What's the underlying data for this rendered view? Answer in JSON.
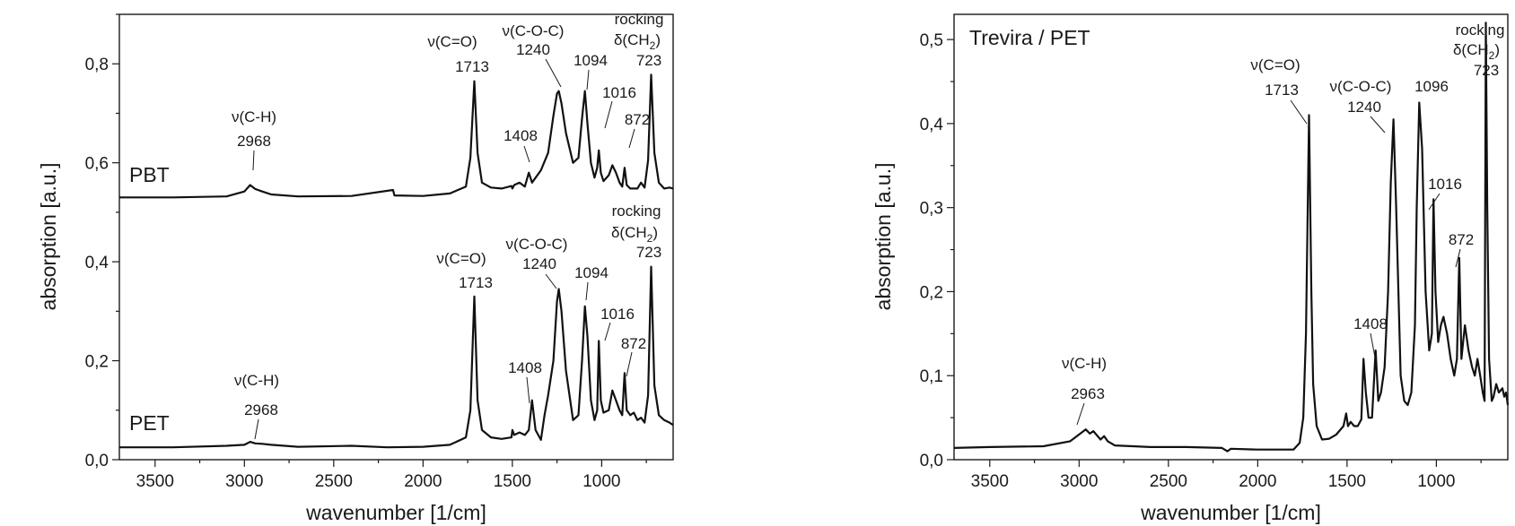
{
  "chart_data": [
    {
      "type": "line",
      "xlabel": "wavenumber [1/cm]",
      "ylabel": "absorption [a.u.]",
      "xlim": [
        3700,
        600
      ],
      "ylim": [
        0.0,
        0.9
      ],
      "x_reversed": true,
      "xticks": [
        3500,
        3000,
        2500,
        2000,
        1500,
        1000
      ],
      "xtick_labels": [
        "3500",
        "3000",
        "2500",
        "2000",
        "1500",
        "1000"
      ],
      "yticks": [
        0.0,
        0.2,
        0.4,
        0.6,
        0.8
      ],
      "ytick_labels": [
        "0,0",
        "0,2",
        "0,4",
        "0,6",
        "0,8"
      ],
      "series": [
        {
          "name": "PBT",
          "x": [
            3700,
            3400,
            3100,
            3000,
            2968,
            2940,
            2900,
            2850,
            2700,
            2400,
            2168,
            2160,
            2000,
            1850,
            1760,
            1735,
            1713,
            1695,
            1670,
            1620,
            1560,
            1505,
            1500,
            1490,
            1460,
            1430,
            1408,
            1390,
            1340,
            1300,
            1270,
            1250,
            1240,
            1225,
            1200,
            1160,
            1130,
            1110,
            1094,
            1080,
            1060,
            1040,
            1025,
            1016,
            1005,
            990,
            960,
            940,
            920,
            900,
            885,
            872,
            860,
            840,
            800,
            780,
            760,
            740,
            723,
            705,
            680,
            650,
            620,
            600
          ],
          "y": [
            0.53,
            0.53,
            0.532,
            0.542,
            0.555,
            0.547,
            0.542,
            0.536,
            0.532,
            0.533,
            0.545,
            0.534,
            0.533,
            0.538,
            0.552,
            0.61,
            0.765,
            0.62,
            0.56,
            0.55,
            0.548,
            0.553,
            0.548,
            0.555,
            0.56,
            0.552,
            0.58,
            0.56,
            0.585,
            0.62,
            0.695,
            0.74,
            0.745,
            0.72,
            0.66,
            0.6,
            0.61,
            0.69,
            0.745,
            0.68,
            0.6,
            0.57,
            0.59,
            0.625,
            0.58,
            0.563,
            0.575,
            0.595,
            0.58,
            0.56,
            0.552,
            0.59,
            0.555,
            0.548,
            0.548,
            0.56,
            0.55,
            0.605,
            0.778,
            0.62,
            0.56,
            0.548,
            0.55,
            0.548
          ]
        },
        {
          "name": "PET",
          "x": [
            3700,
            3400,
            3100,
            3000,
            2968,
            2940,
            2900,
            2850,
            2700,
            2400,
            2200,
            2000,
            1850,
            1760,
            1735,
            1713,
            1695,
            1670,
            1620,
            1560,
            1505,
            1500,
            1490,
            1460,
            1430,
            1408,
            1390,
            1370,
            1340,
            1320,
            1300,
            1270,
            1250,
            1240,
            1225,
            1200,
            1160,
            1130,
            1110,
            1094,
            1080,
            1060,
            1040,
            1025,
            1016,
            1005,
            990,
            960,
            940,
            920,
            900,
            885,
            872,
            860,
            840,
            820,
            800,
            780,
            760,
            740,
            723,
            705,
            680,
            650,
            620,
            600
          ],
          "y": [
            0.025,
            0.025,
            0.028,
            0.03,
            0.036,
            0.033,
            0.032,
            0.03,
            0.026,
            0.028,
            0.025,
            0.026,
            0.03,
            0.045,
            0.1,
            0.33,
            0.12,
            0.06,
            0.045,
            0.042,
            0.045,
            0.06,
            0.05,
            0.055,
            0.05,
            0.06,
            0.12,
            0.06,
            0.04,
            0.09,
            0.13,
            0.2,
            0.32,
            0.345,
            0.3,
            0.18,
            0.08,
            0.09,
            0.2,
            0.31,
            0.25,
            0.12,
            0.08,
            0.1,
            0.24,
            0.12,
            0.095,
            0.1,
            0.14,
            0.12,
            0.1,
            0.09,
            0.175,
            0.1,
            0.09,
            0.095,
            0.08,
            0.085,
            0.075,
            0.13,
            0.39,
            0.15,
            0.09,
            0.08,
            0.075,
            0.07
          ]
        }
      ],
      "panel_labels": [
        "PBT",
        "PET"
      ],
      "annotations": {
        "pbt": {
          "ch_name": "ν(C-H)",
          "ch_val": "2968",
          "co_name": "ν(C=O)",
          "co_val": "1713",
          "coc_name": "ν(C-O-C)",
          "coc_val": "1240",
          "p1094": "1094",
          "p1016": "1016",
          "p1408": "1408",
          "p872": "872",
          "rock1": "rocking",
          "rock2a": "δ(CH",
          "rock2sub": "2",
          "rock2b": ")",
          "p723": "723"
        },
        "pet": {
          "ch_name": "ν(C-H)",
          "ch_val": "2968",
          "co_name": "ν(C=O)",
          "co_val": "1713",
          "coc_name": "ν(C-O-C)",
          "coc_val": "1240",
          "p1094": "1094",
          "p1016": "1016",
          "p1408": "1408",
          "p872": "872",
          "rock1": "rocking",
          "rock2a": "δ(CH",
          "rock2sub": "2",
          "rock2b": ")",
          "p723": "723"
        }
      }
    },
    {
      "type": "line",
      "xlabel": "wavenumber [1/cm]",
      "ylabel": "absorption [a.u.]",
      "xlim": [
        3700,
        600
      ],
      "ylim": [
        0.0,
        0.53
      ],
      "x_reversed": true,
      "xticks": [
        3500,
        3000,
        2500,
        2000,
        1500,
        1000
      ],
      "xtick_labels": [
        "3500",
        "3000",
        "2500",
        "2000",
        "1500",
        "1000"
      ],
      "yticks": [
        0.0,
        0.1,
        0.2,
        0.3,
        0.4,
        0.5
      ],
      "ytick_labels": [
        "0,0",
        "0,1",
        "0,2",
        "0,3",
        "0,4",
        "0,5"
      ],
      "title": "Trevira / PET",
      "series": [
        {
          "x": [
            3700,
            3500,
            3200,
            3050,
            3000,
            2963,
            2940,
            2920,
            2900,
            2880,
            2860,
            2840,
            2800,
            2600,
            2400,
            2200,
            2170,
            2150,
            2000,
            1900,
            1800,
            1765,
            1745,
            1730,
            1713,
            1700,
            1690,
            1670,
            1640,
            1600,
            1560,
            1520,
            1505,
            1495,
            1480,
            1460,
            1440,
            1420,
            1408,
            1395,
            1380,
            1360,
            1340,
            1325,
            1310,
            1290,
            1270,
            1255,
            1240,
            1225,
            1200,
            1180,
            1160,
            1140,
            1120,
            1110,
            1096,
            1080,
            1060,
            1040,
            1025,
            1016,
            1005,
            990,
            975,
            960,
            940,
            920,
            900,
            885,
            872,
            860,
            850,
            840,
            820,
            800,
            785,
            770,
            755,
            740,
            730,
            723,
            715,
            705,
            690,
            680,
            665,
            650,
            630,
            620,
            610,
            600
          ],
          "y": [
            0.014,
            0.015,
            0.016,
            0.022,
            0.03,
            0.036,
            0.031,
            0.034,
            0.029,
            0.024,
            0.028,
            0.022,
            0.017,
            0.015,
            0.015,
            0.014,
            0.01,
            0.013,
            0.012,
            0.012,
            0.012,
            0.02,
            0.05,
            0.15,
            0.41,
            0.2,
            0.09,
            0.04,
            0.024,
            0.025,
            0.03,
            0.04,
            0.055,
            0.04,
            0.045,
            0.04,
            0.04,
            0.048,
            0.12,
            0.08,
            0.05,
            0.05,
            0.13,
            0.07,
            0.08,
            0.11,
            0.2,
            0.33,
            0.405,
            0.3,
            0.1,
            0.07,
            0.065,
            0.08,
            0.16,
            0.3,
            0.425,
            0.37,
            0.2,
            0.13,
            0.15,
            0.31,
            0.2,
            0.14,
            0.16,
            0.17,
            0.15,
            0.12,
            0.1,
            0.12,
            0.24,
            0.12,
            0.14,
            0.16,
            0.13,
            0.11,
            0.1,
            0.12,
            0.1,
            0.08,
            0.07,
            0.52,
            0.3,
            0.12,
            0.07,
            0.075,
            0.09,
            0.08,
            0.085,
            0.075,
            0.08,
            0.065
          ]
        }
      ],
      "annotations": {
        "ch_name": "ν(C-H)",
        "ch_val": "2963",
        "co_name": "ν(C=O)",
        "co_val": "1713",
        "coc_name": "ν(C-O-C)",
        "coc_val": "1240",
        "p1096": "1096",
        "p1408": "1408",
        "p1016": "1016",
        "p872": "872",
        "rock1": "rocking",
        "rock2a": "δ(CH",
        "rock2sub": "2",
        "rock2b": ")",
        "p723": "723"
      }
    }
  ]
}
